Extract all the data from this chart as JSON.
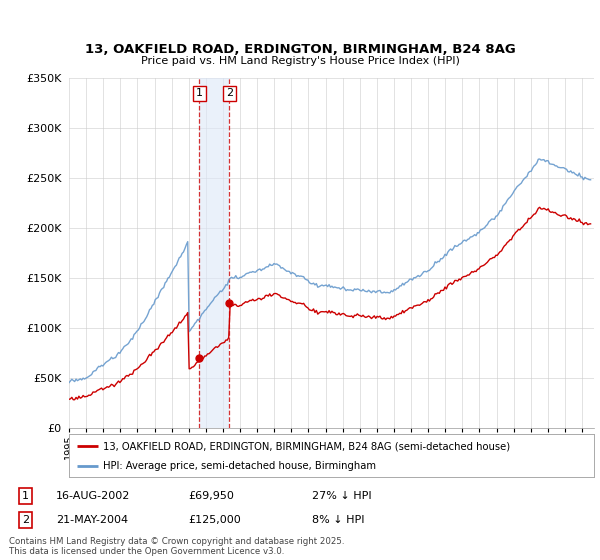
{
  "title_line1": "13, OAKFIELD ROAD, ERDINGTON, BIRMINGHAM, B24 8AG",
  "title_line2": "Price paid vs. HM Land Registry's House Price Index (HPI)",
  "y_ticks": [
    0,
    50000,
    100000,
    150000,
    200000,
    250000,
    300000,
    350000
  ],
  "y_tick_labels": [
    "£0",
    "£50K",
    "£100K",
    "£150K",
    "£200K",
    "£250K",
    "£300K",
    "£350K"
  ],
  "transaction1": {
    "date": "16-AUG-2002",
    "price": 69950,
    "hpi_diff": "27% ↓ HPI",
    "x": 2002.62
  },
  "transaction2": {
    "date": "21-MAY-2004",
    "price": 125000,
    "hpi_diff": "8% ↓ HPI",
    "x": 2004.38
  },
  "legend_label_red": "13, OAKFIELD ROAD, ERDINGTON, BIRMINGHAM, B24 8AG (semi-detached house)",
  "legend_label_blue": "HPI: Average price, semi-detached house, Birmingham",
  "footer_line1": "Contains HM Land Registry data © Crown copyright and database right 2025.",
  "footer_line2": "This data is licensed under the Open Government Licence v3.0.",
  "red_color": "#cc0000",
  "blue_color": "#6699cc",
  "background_color": "#ffffff",
  "vline_fill": "#dde8f8"
}
